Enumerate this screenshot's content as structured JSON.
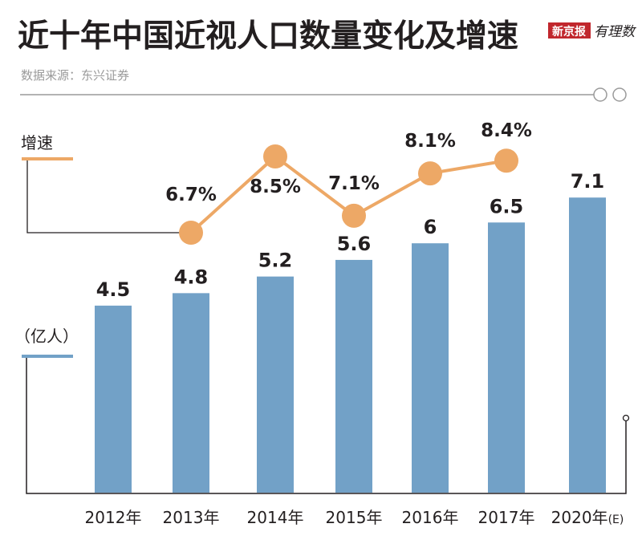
{
  "header": {
    "title": "近十年中国近视人口数量变化及增速",
    "source": "数据来源：东兴证券",
    "logo_text": "新京报",
    "logo_sub": "有理数"
  },
  "colors": {
    "bar": "#72a1c7",
    "line": "#eda866",
    "text": "#231f20",
    "logo_red": "#c1272d"
  },
  "chart_data": {
    "type": "bar+line",
    "title": "近十年中国近视人口数量变化及增速",
    "categories": [
      "2012年",
      "2013年",
      "2014年",
      "2015年",
      "2016年",
      "2017年",
      "2020年"
    ],
    "category_suffix_last": "(E)",
    "series": [
      {
        "name": "（亿人）",
        "type": "bar",
        "values": [
          4.5,
          4.8,
          5.2,
          5.6,
          6,
          6.5,
          7.1
        ],
        "labels": [
          "4.5",
          "4.8",
          "5.2",
          "5.6",
          "6",
          "6.5",
          "7.1"
        ]
      },
      {
        "name": "增速",
        "type": "line",
        "values": [
          null,
          6.7,
          8.5,
          7.1,
          8.1,
          8.4,
          null
        ],
        "labels": [
          "",
          "6.7%",
          "8.5%",
          "7.1%",
          "8.1%",
          "8.4%",
          ""
        ]
      }
    ],
    "grid": false
  }
}
